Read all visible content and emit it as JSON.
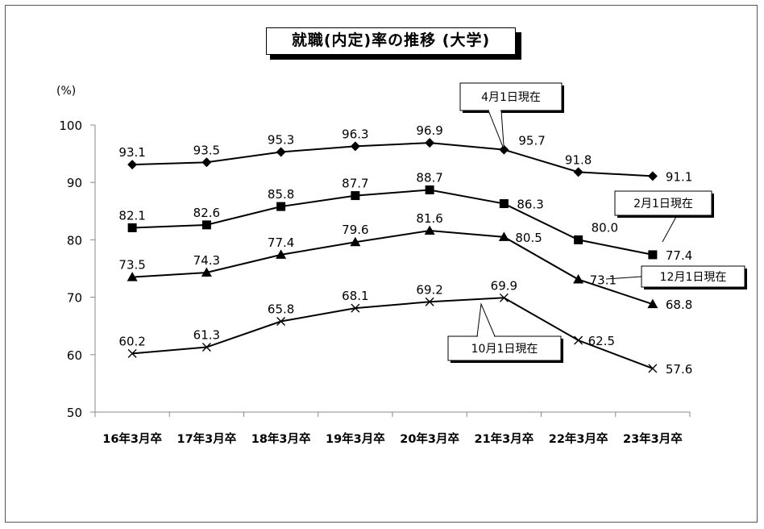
{
  "chart_data": {
    "type": "line",
    "title": "就職(内定)率の推移 (大学)",
    "ylabel": "(%)",
    "xlabel": "",
    "ylim": [
      50,
      100
    ],
    "yticks": [
      50,
      60,
      70,
      80,
      90,
      100
    ],
    "grid": false,
    "categories": [
      "16年3月卒",
      "17年3月卒",
      "18年3月卒",
      "19年3月卒",
      "20年3月卒",
      "21年3月卒",
      "22年3月卒",
      "23年3月卒"
    ],
    "series": [
      {
        "name": "4月1日現在",
        "marker": "diamond",
        "values": [
          93.1,
          93.5,
          95.3,
          96.3,
          96.9,
          95.7,
          91.8,
          91.1
        ]
      },
      {
        "name": "2月1日現在",
        "marker": "square",
        "values": [
          82.1,
          82.6,
          85.8,
          87.7,
          88.7,
          86.3,
          80.0,
          77.4
        ]
      },
      {
        "name": "12月1日現在",
        "marker": "triangle",
        "values": [
          73.5,
          74.3,
          77.4,
          79.6,
          81.6,
          80.5,
          73.1,
          68.8
        ]
      },
      {
        "name": "10月1日現在",
        "marker": "cross",
        "values": [
          60.2,
          61.3,
          65.8,
          68.1,
          69.2,
          69.9,
          62.5,
          57.6
        ]
      }
    ],
    "data_labels": [
      [
        "93.1",
        "93.5",
        "95.3",
        "96.3",
        "96.9",
        "95.7",
        "91.8",
        "91.1"
      ],
      [
        "82.1",
        "82.6",
        "85.8",
        "87.7",
        "88.7",
        "86.3",
        "80.0",
        "77.4"
      ],
      [
        "73.5",
        "74.3",
        "77.4",
        "79.6",
        "81.6",
        "80.5",
        "73.1",
        "68.8"
      ],
      [
        "60.2",
        "61.3",
        "65.8",
        "68.1",
        "69.2",
        "69.9",
        "62.5",
        "57.6"
      ]
    ],
    "colors": {
      "line": "#000000",
      "background": "#ffffff"
    }
  }
}
